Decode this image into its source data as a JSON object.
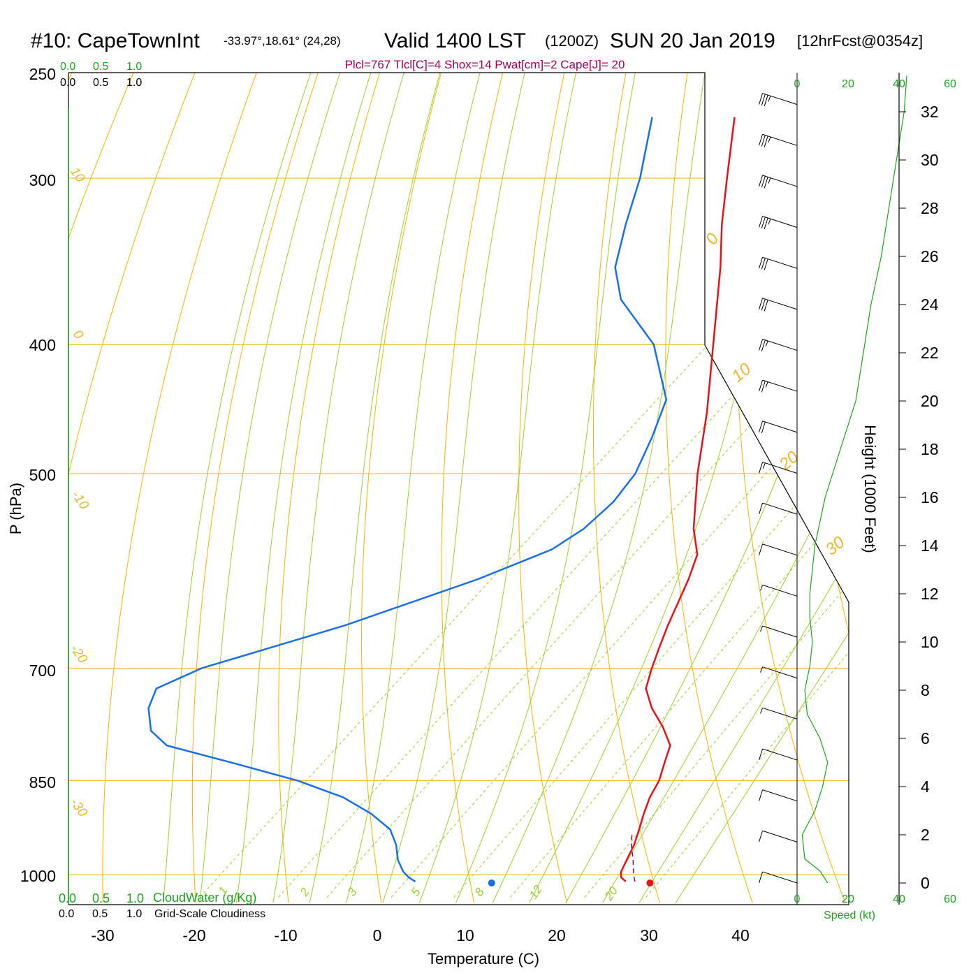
{
  "title": {
    "station": "#10: CapeTownInt",
    "coords": "-33.97°,18.61° (24,28)",
    "valid": "Valid 1400 LST",
    "utc": "(1200Z)",
    "date": "SUN 20 Jan 2019",
    "forecast": "[12hrFcst@0354z]"
  },
  "info_line": "Plcl=767 Tlcl[C]=4 Shox=14 Pwat[cm]=2 Cape[J]= 20",
  "colors": {
    "temperature": "#e8101a",
    "dewpoint": "#1a6fe8",
    "isobar": "#f0b400",
    "dry_adiabat": "#f0b400",
    "moist_adiabat": "#9acd32",
    "mixing_ratio": "#9acd32",
    "wind_speed": "#1ea01e",
    "parcel": "#8b0a50"
  },
  "chart_data": {
    "type": "line",
    "title": "#10: CapeTownInt -33.97°,18.61° (24,28) Valid 1400 LST (1200Z) SUN 20 Jan 2019 [12hrFcst@0354z]",
    "xlabel": "Temperature (C)",
    "ylabel": "P (hPa)",
    "y2label": "Height (1000 Feet)",
    "x_ticks": [
      "-30",
      "-20",
      "-10",
      "0",
      "10",
      "20",
      "30",
      "40"
    ],
    "y_ticks": [
      "250",
      "300",
      "400",
      "500",
      "700",
      "850",
      "1000"
    ],
    "height_ticks": [
      "0",
      "2",
      "4",
      "6",
      "8",
      "10",
      "12",
      "14",
      "16",
      "18",
      "20",
      "22",
      "24",
      "26",
      "28",
      "30",
      "32"
    ],
    "dry_adiabat_labels": [
      "10",
      "0",
      "-10",
      "-20",
      "-30",
      "0",
      "10",
      "20",
      "30"
    ],
    "mixing_ratio_labels": [
      "1",
      "2",
      "3",
      "5",
      "8",
      "12",
      "20"
    ],
    "wind_speed_ticks": [
      "0",
      "20",
      "40",
      "60"
    ],
    "cloud_ticks": [
      "0.0",
      "0.5",
      "1.0"
    ],
    "cloudwater_label": "CloudWater (g/Kg)",
    "cloudiness_label": "Grid-Scale Cloudiness",
    "speed_label": "Speed (kt)",
    "log_pressure_axis": true,
    "skewed_temperature_axis": true,
    "series": [
      {
        "points": [
          {
            "p": 1012,
            "t": 28.0
          },
          {
            "p": 1005,
            "t": 27.0
          },
          {
            "p": 995,
            "t": 26.3
          },
          {
            "p": 975,
            "t": 25.5
          },
          {
            "p": 950,
            "t": 24.5
          },
          {
            "p": 925,
            "t": 23.2
          },
          {
            "p": 900,
            "t": 21.8
          },
          {
            "p": 875,
            "t": 20.5
          },
          {
            "p": 850,
            "t": 19.5
          },
          {
            "p": 825,
            "t": 18.0
          },
          {
            "p": 800,
            "t": 16.5
          },
          {
            "p": 775,
            "t": 13.5
          },
          {
            "p": 750,
            "t": 10.0
          },
          {
            "p": 725,
            "t": 7.0
          },
          {
            "p": 700,
            "t": 5.2
          },
          {
            "p": 675,
            "t": 3.5
          },
          {
            "p": 650,
            "t": 1.8
          },
          {
            "p": 600,
            "t": -1.5
          },
          {
            "p": 575,
            "t": -3.5
          },
          {
            "p": 550,
            "t": -7.0
          },
          {
            "p": 500,
            "t": -13.2
          },
          {
            "p": 450,
            "t": -19.5
          },
          {
            "p": 400,
            "t": -27.0
          },
          {
            "p": 350,
            "t": -35.5
          },
          {
            "p": 325,
            "t": -40.5
          },
          {
            "p": 300,
            "t": -45.5
          },
          {
            "p": 270,
            "t": -52.0
          }
        ]
      },
      {
        "points": [
          {
            "p": 1012,
            "t": 5.0
          },
          {
            "p": 1005,
            "t": 3.8
          },
          {
            "p": 995,
            "t": 2.5
          },
          {
            "p": 975,
            "t": 0.5
          },
          {
            "p": 950,
            "t": -1.5
          },
          {
            "p": 925,
            "t": -4.0
          },
          {
            "p": 900,
            "t": -8.0
          },
          {
            "p": 875,
            "t": -13.0
          },
          {
            "p": 850,
            "t": -20.0
          },
          {
            "p": 825,
            "t": -29.0
          },
          {
            "p": 800,
            "t": -38.5
          },
          {
            "p": 780,
            "t": -42.0
          },
          {
            "p": 750,
            "t": -45.0
          },
          {
            "p": 725,
            "t": -46.5
          },
          {
            "p": 700,
            "t": -44.0
          },
          {
            "p": 650,
            "t": -33.5
          },
          {
            "p": 600,
            "t": -24.5
          },
          {
            "p": 570,
            "t": -20.0
          },
          {
            "p": 550,
            "t": -19.0
          },
          {
            "p": 525,
            "t": -19.0
          },
          {
            "p": 500,
            "t": -20.0
          },
          {
            "p": 470,
            "t": -22.5
          },
          {
            "p": 440,
            "t": -25.5
          },
          {
            "p": 400,
            "t": -33.5
          },
          {
            "p": 370,
            "t": -42.5
          },
          {
            "p": 350,
            "t": -47.0
          },
          {
            "p": 325,
            "t": -51.0
          },
          {
            "p": 300,
            "t": -55.0
          },
          {
            "p": 270,
            "t": -61.0
          }
        ]
      }
    ],
    "parcel_path": [
      {
        "p": 1012,
        "t": 29.0
      },
      {
        "p": 1000,
        "t": 28.0
      },
      {
        "p": 975,
        "t": 26.2
      },
      {
        "p": 950,
        "t": 24.2
      },
      {
        "p": 930,
        "t": 22.8
      }
    ],
    "surface_markers": [
      {
        "series": "temperature",
        "t": 29.8,
        "p": 1012
      },
      {
        "series": "dewpoint",
        "t": 12.5,
        "p": 1012
      }
    ],
    "wind_speed_profile": [
      {
        "h": 0.0,
        "s": 12
      },
      {
        "h": 0.5,
        "s": 9
      },
      {
        "h": 1.0,
        "s": 3
      },
      {
        "h": 2.0,
        "s": 2
      },
      {
        "h": 3.0,
        "s": 7
      },
      {
        "h": 4.0,
        "s": 10
      },
      {
        "h": 5.0,
        "s": 12
      },
      {
        "h": 6.0,
        "s": 9
      },
      {
        "h": 7.0,
        "s": 4
      },
      {
        "h": 8.0,
        "s": 3
      },
      {
        "h": 9.0,
        "s": 5
      },
      {
        "h": 10.0,
        "s": 6
      },
      {
        "h": 11.0,
        "s": 5
      },
      {
        "h": 12.0,
        "s": 5
      },
      {
        "h": 14.0,
        "s": 7
      },
      {
        "h": 16.0,
        "s": 11
      },
      {
        "h": 18.0,
        "s": 17
      },
      {
        "h": 20.0,
        "s": 23
      },
      {
        "h": 22.0,
        "s": 26
      },
      {
        "h": 24.0,
        "s": 29
      },
      {
        "h": 26.0,
        "s": 33
      },
      {
        "h": 28.0,
        "s": 36
      },
      {
        "h": 30.0,
        "s": 39
      },
      {
        "h": 32.0,
        "s": 42
      },
      {
        "h": 33.5,
        "s": 43
      }
    ],
    "wind_barbs": [
      {
        "h": 32.3,
        "speed": 35
      },
      {
        "h": 30.6,
        "speed": 35
      },
      {
        "h": 28.9,
        "speed": 35
      },
      {
        "h": 27.2,
        "speed": 35
      },
      {
        "h": 25.5,
        "speed": 30
      },
      {
        "h": 23.8,
        "speed": 30
      },
      {
        "h": 22.1,
        "speed": 25
      },
      {
        "h": 20.4,
        "speed": 25
      },
      {
        "h": 18.7,
        "speed": 20
      },
      {
        "h": 17.0,
        "speed": 15
      },
      {
        "h": 15.3,
        "speed": 10
      },
      {
        "h": 13.6,
        "speed": 10
      },
      {
        "h": 11.9,
        "speed": 5
      },
      {
        "h": 10.2,
        "speed": 5
      },
      {
        "h": 8.5,
        "speed": 5
      },
      {
        "h": 6.8,
        "speed": 5
      },
      {
        "h": 5.1,
        "speed": 10
      },
      {
        "h": 3.4,
        "speed": 10
      },
      {
        "h": 1.7,
        "speed": 10
      },
      {
        "h": 0.0,
        "speed": 10
      }
    ]
  }
}
